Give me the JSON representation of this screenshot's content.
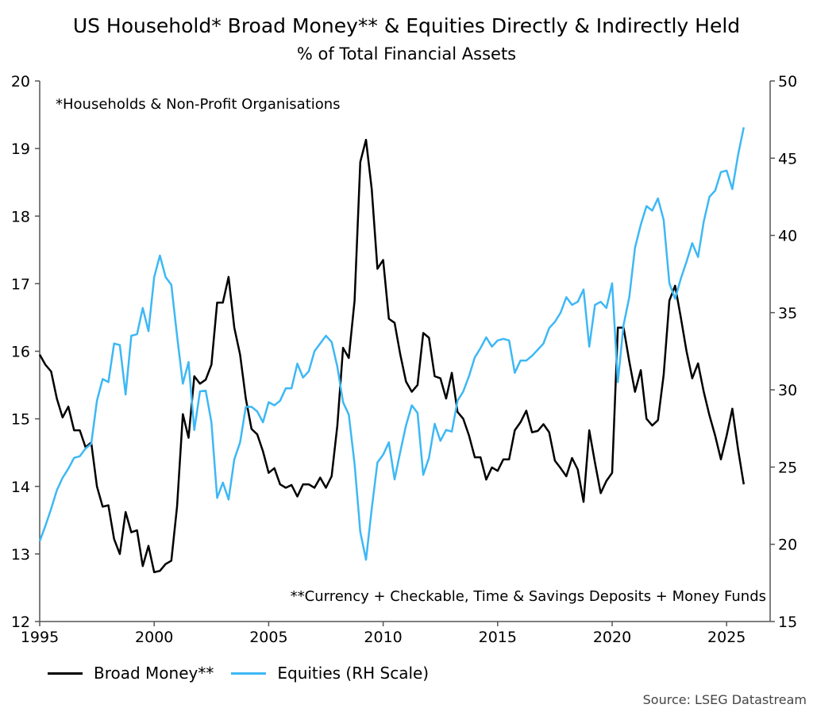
{
  "chart_data": {
    "type": "line",
    "title": "US Household* Broad Money** & Equities Directly & Indirectly Held",
    "subtitle": "% of Total Financial Assets",
    "annotations": [
      "*Households & Non-Profit Organisations",
      "**Currency + Checkable, Time & Savings Deposits + Money Funds"
    ],
    "source": "Source: LSEG Datastream",
    "x_start": 1995.0,
    "x_step": 0.25,
    "xlim": [
      1995,
      2026.9
    ],
    "xticks": [
      1995,
      2000,
      2005,
      2010,
      2015,
      2020,
      2025
    ],
    "ylim_left": [
      12,
      20
    ],
    "yticks_left": [
      12,
      13,
      14,
      15,
      16,
      17,
      18,
      19,
      20
    ],
    "ylim_right": [
      15,
      50
    ],
    "yticks_right": [
      15,
      20,
      25,
      30,
      35,
      40,
      45,
      50
    ],
    "grid": false,
    "legend_placement": "bottom-left",
    "series": [
      {
        "name": "Broad Money**",
        "axis": "left",
        "color": "#000000",
        "values": [
          15.95,
          15.8,
          15.7,
          15.3,
          15.02,
          15.18,
          14.83,
          14.83,
          14.58,
          14.65,
          14.0,
          13.7,
          13.72,
          13.22,
          13.0,
          13.62,
          13.32,
          13.35,
          12.82,
          13.12,
          12.73,
          12.75,
          12.85,
          12.9,
          13.7,
          15.07,
          14.72,
          15.63,
          15.52,
          15.58,
          15.8,
          16.72,
          16.72,
          17.1,
          16.35,
          15.95,
          15.3,
          14.85,
          14.77,
          14.52,
          14.2,
          14.27,
          14.03,
          13.98,
          14.02,
          13.85,
          14.03,
          14.03,
          13.98,
          14.13,
          13.98,
          14.15,
          14.9,
          16.05,
          15.9,
          16.75,
          18.8,
          19.13,
          18.4,
          17.22,
          17.35,
          16.48,
          16.42,
          15.95,
          15.55,
          15.4,
          15.5,
          16.27,
          16.2,
          15.63,
          15.6,
          15.3,
          15.68,
          15.1,
          15.0,
          14.75,
          14.43,
          14.43,
          14.1,
          14.28,
          14.23,
          14.4,
          14.4,
          14.83,
          14.95,
          15.12,
          14.8,
          14.82,
          14.92,
          14.8,
          14.38,
          14.27,
          14.15,
          14.42,
          14.25,
          13.77,
          14.83,
          14.35,
          13.9,
          14.08,
          14.2,
          16.35,
          16.35,
          15.85,
          15.4,
          15.72,
          15.0,
          14.9,
          14.98,
          15.65,
          16.75,
          16.97,
          16.5,
          16.0,
          15.6,
          15.82,
          15.4,
          15.05,
          14.75,
          14.4,
          14.75,
          15.15,
          14.55,
          14.03
        ]
      },
      {
        "name": "Equities (RH Scale)",
        "axis": "right",
        "color": "#3db8f5",
        "values": [
          20.2,
          21.2,
          22.3,
          23.5,
          24.3,
          24.9,
          25.6,
          25.7,
          26.2,
          26.5,
          29.3,
          30.7,
          30.5,
          33.0,
          32.9,
          29.7,
          33.5,
          33.6,
          35.3,
          33.8,
          37.3,
          38.7,
          37.3,
          36.8,
          33.5,
          30.4,
          31.8,
          27.4,
          29.9,
          29.95,
          27.9,
          23.0,
          24.0,
          22.9,
          25.5,
          26.6,
          28.9,
          28.9,
          28.6,
          27.9,
          29.2,
          29.0,
          29.3,
          30.1,
          30.1,
          31.7,
          30.8,
          31.2,
          32.5,
          33.0,
          33.5,
          33.1,
          31.5,
          29.2,
          28.4,
          25.2,
          20.8,
          19.0,
          22.3,
          25.3,
          25.8,
          26.6,
          24.2,
          26.0,
          27.7,
          29.0,
          28.5,
          24.5,
          25.6,
          27.8,
          26.7,
          27.4,
          27.3,
          29.3,
          29.9,
          30.9,
          32.1,
          32.7,
          33.4,
          32.8,
          33.2,
          33.3,
          33.2,
          31.1,
          31.9,
          31.9,
          32.2,
          32.6,
          33.0,
          34.0,
          34.4,
          35.0,
          36.0,
          35.5,
          35.7,
          36.5,
          32.8,
          35.5,
          35.7,
          35.3,
          36.9,
          30.5,
          34.2,
          36.0,
          39.2,
          40.7,
          41.9,
          41.6,
          42.4,
          41.0,
          36.9,
          35.9,
          37.2,
          38.3,
          39.5,
          38.6,
          40.9,
          42.5,
          42.9,
          44.1,
          44.2,
          43.0,
          45.2,
          47.0
        ]
      }
    ]
  }
}
